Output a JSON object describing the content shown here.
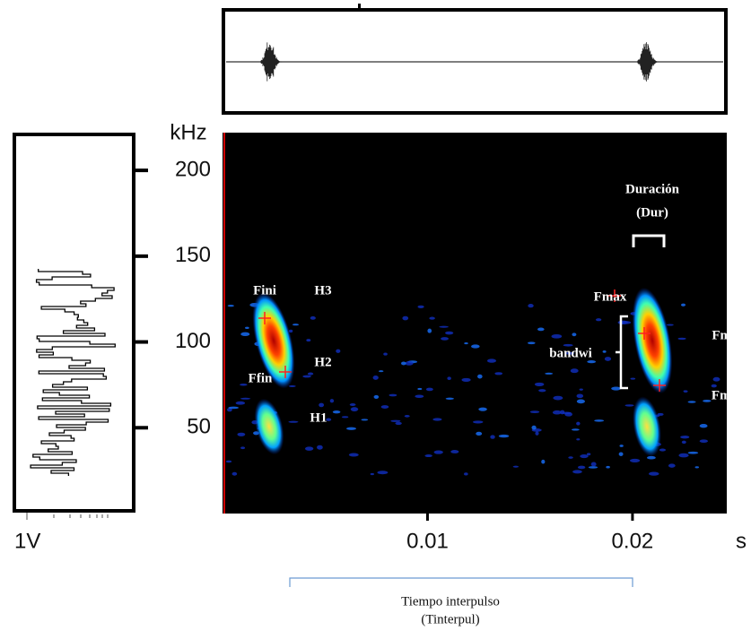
{
  "chart_data": {
    "type": "spectrogram",
    "y_unit": "kHz",
    "x_unit": "s",
    "amplitude_label": "1V",
    "ylim": [
      0,
      222
    ],
    "yticks": [
      50,
      100,
      150,
      200
    ],
    "xlim": [
      0,
      0.0246
    ],
    "xticks": [
      0.01,
      0.02
    ],
    "annotations": [
      "Duración",
      "(Dur)",
      "Fini",
      "H3",
      "H2",
      "H1",
      "Ffin",
      "Fmax",
      "bandwi",
      "Fmaxe",
      "Fmin"
    ],
    "interpulse_label": [
      "Tiempo interpulso",
      "(Tinterpul)"
    ]
  }
}
